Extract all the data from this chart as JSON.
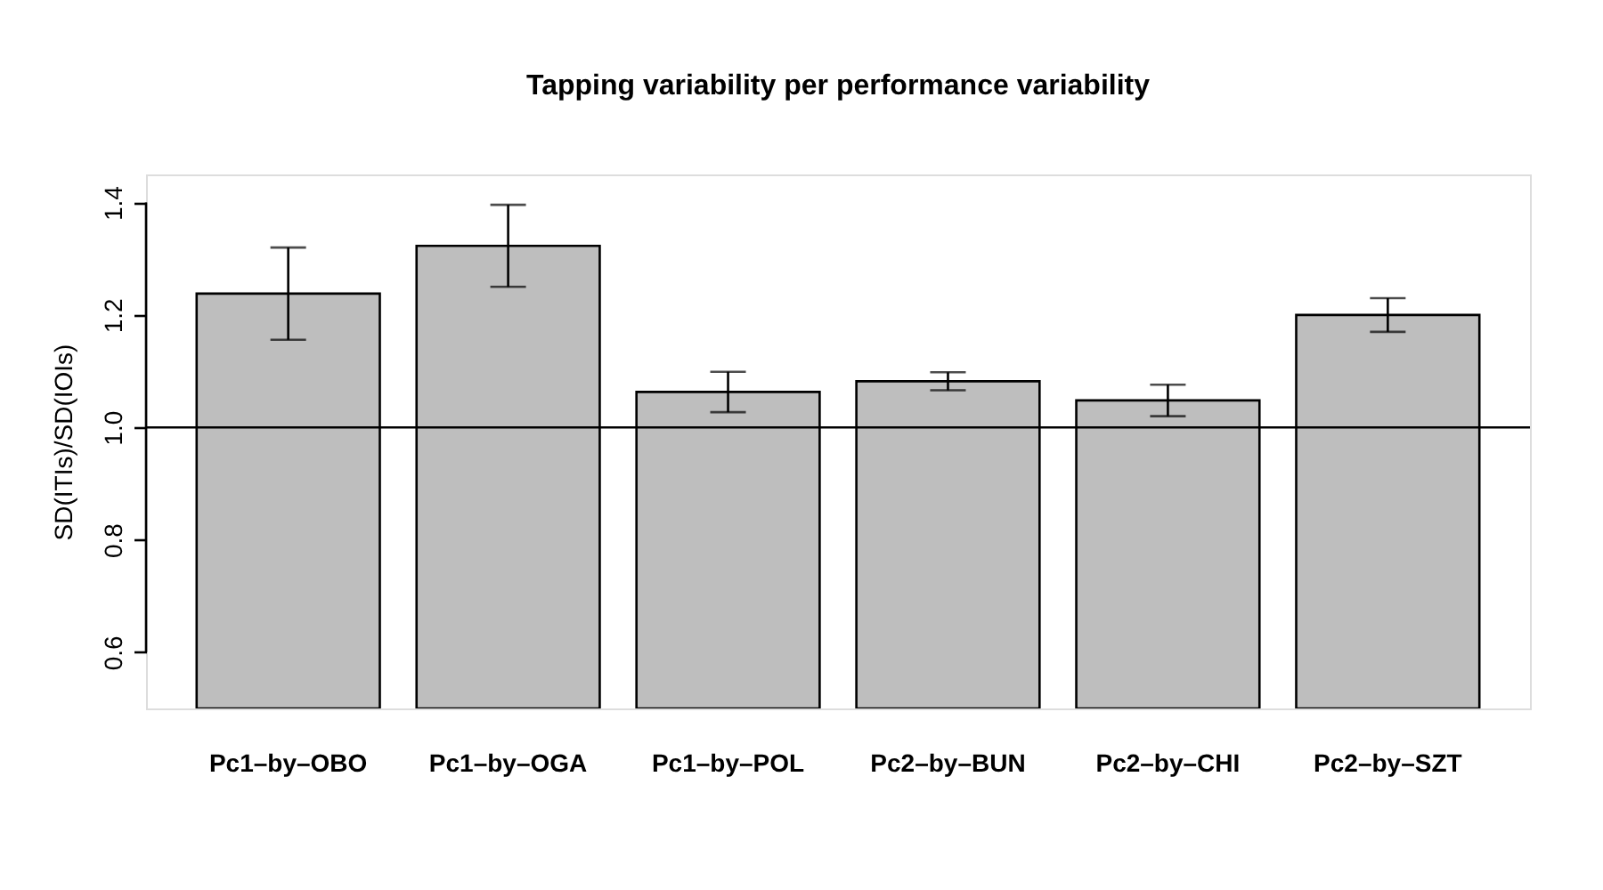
{
  "chart_data": {
    "type": "bar",
    "title": "Tapping variability per performance variability",
    "ylabel": "SD(ITIs)/SD(IOIs)",
    "categories": [
      "Pc1–by–OBO",
      "Pc1–by–OGA",
      "Pc1–by–POL",
      "Pc2–by–BUN",
      "Pc2–by–CHI",
      "Pc2–by–SZT"
    ],
    "values": [
      1.238,
      1.323,
      1.063,
      1.082,
      1.048,
      1.2
    ],
    "errors": [
      0.082,
      0.073,
      0.036,
      0.016,
      0.028,
      0.03
    ],
    "color": "#bebebe",
    "ylim": [
      0.5,
      1.45
    ],
    "yticks": [
      {
        "value": 0.6,
        "label": "0.6"
      },
      {
        "value": 0.8,
        "label": "0.8"
      },
      {
        "value": 1.0,
        "label": "1.0"
      },
      {
        "value": 1.2,
        "label": "1.2"
      },
      {
        "value": 1.4,
        "label": "1.4"
      }
    ],
    "ref_lines": [
      {
        "axis": "y",
        "value": 1.0,
        "label": null
      }
    ],
    "grid": false
  }
}
